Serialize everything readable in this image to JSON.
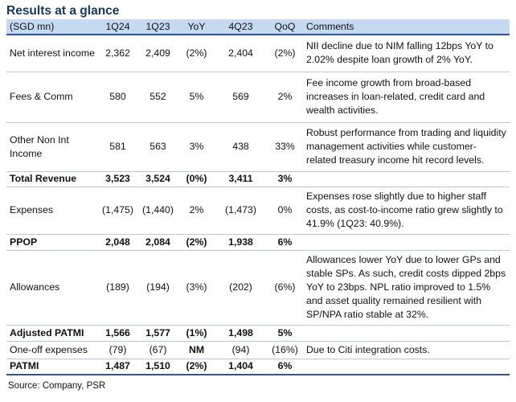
{
  "title": "Results at a glance",
  "headers": [
    "(SGD mn)",
    "1Q24",
    "1Q23",
    "YoY",
    "4Q23",
    "QoQ",
    "Comments"
  ],
  "rows": [
    {
      "label": "Net interest income",
      "q124": "2,362",
      "q123": "2,409",
      "yoy": "(2%)",
      "q423": "2,404",
      "qoq": "(2%)",
      "comment": "NII decline due to NIM falling 12bps YoY to 2.02% despite loan growth of 2% YoY."
    },
    {
      "label": "Fees & Comm",
      "q124": "580",
      "q123": "552",
      "yoy": "5%",
      "q423": "569",
      "qoq": "2%",
      "comment": "Fee income growth from broad-based increases in loan-related, credit card and wealth activities."
    },
    {
      "label": "Other Non Int Income",
      "q124": "581",
      "q123": "563",
      "yoy": "3%",
      "q423": "438",
      "qoq": "33%",
      "comment": "Robust performance from trading and liquidity management activities while customer-related treasury income hit record levels."
    },
    {
      "label": "Total Revenue",
      "q124": "3,523",
      "q123": "3,524",
      "yoy": "(0%)",
      "q423": "3,411",
      "qoq": "3%",
      "comment": ""
    },
    {
      "label": "Expenses",
      "q124": "(1,475)",
      "q123": "(1,440)",
      "yoy": "2%",
      "q423": "(1,473)",
      "qoq": "0%",
      "comment": "Expenses rose slightly due to higher staff costs, as cost-to-income ratio grew slightly to 41.9% (1Q23: 40.9%)."
    },
    {
      "label": "PPOP",
      "q124": "2,048",
      "q123": "2,084",
      "yoy": "(2%)",
      "q423": "1,938",
      "qoq": "6%",
      "comment": ""
    },
    {
      "label": "Allowances",
      "q124": "(189)",
      "q123": "(194)",
      "yoy": "(3%)",
      "q423": "(202)",
      "qoq": "(6%)",
      "comment": "Allowances lower YoY due to lower GPs and stable SPs. As such, credit costs dipped 2bps YoY to 23bps. NPL ratio improved to 1.5% and asset quality remained resilient with SP/NPA ratio stable at 32%."
    },
    {
      "label": "Adjusted PATMI",
      "q124": "1,566",
      "q123": "1,577",
      "yoy": "(1%)",
      "q423": "1,498",
      "qoq": "5%",
      "comment": ""
    },
    {
      "label": "One-off expenses",
      "q124": "(79)",
      "q123": "(67)",
      "yoy": "NM",
      "q423": "(94)",
      "qoq": "(16%)",
      "comment": "Due to Citi integration costs."
    },
    {
      "label": "PATMI",
      "q124": "1,487",
      "q123": "1,510",
      "yoy": "(2%)",
      "q423": "1,404",
      "qoq": "6%",
      "comment": ""
    }
  ],
  "source": "Source: Company, PSR"
}
